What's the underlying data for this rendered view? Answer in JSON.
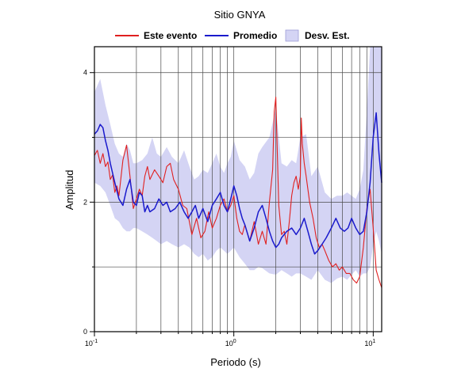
{
  "chart_data": {
    "type": "line",
    "title": "Sitio GNYA",
    "xlabel": "Periodo (s)",
    "ylabel": "Amplitud",
    "x_scale": "log",
    "xlim": [
      0.1,
      11.5
    ],
    "ylim": [
      0,
      4.4
    ],
    "grid": true,
    "legend_position": "top",
    "x_ticks": [
      {
        "value": 0.1,
        "base": "10",
        "exp": "-1"
      },
      {
        "value": 1,
        "base": "10",
        "exp": "0"
      },
      {
        "value": 10,
        "base": "10",
        "exp": "1"
      }
    ],
    "y_ticks": [
      "0",
      "2",
      "4"
    ],
    "legend": [
      {
        "label": "Este evento",
        "kind": "line",
        "color": "#e02020"
      },
      {
        "label": "Promedio",
        "kind": "line",
        "color": "#1a1acc"
      },
      {
        "label": "Desv. Est.",
        "kind": "band",
        "color": "#d4d4f4"
      }
    ],
    "series": [
      {
        "name": "Este evento",
        "color": "#e02020",
        "x": [
          0.1,
          0.105,
          0.11,
          0.115,
          0.12,
          0.125,
          0.13,
          0.135,
          0.14,
          0.145,
          0.15,
          0.16,
          0.17,
          0.18,
          0.19,
          0.2,
          0.21,
          0.22,
          0.23,
          0.24,
          0.25,
          0.27,
          0.29,
          0.31,
          0.33,
          0.35,
          0.37,
          0.4,
          0.43,
          0.46,
          0.5,
          0.54,
          0.58,
          0.62,
          0.66,
          0.7,
          0.75,
          0.8,
          0.85,
          0.9,
          0.95,
          1.0,
          1.05,
          1.1,
          1.15,
          1.2,
          1.3,
          1.4,
          1.5,
          1.6,
          1.7,
          1.8,
          1.9,
          1.95,
          2.0,
          2.05,
          2.1,
          2.2,
          2.3,
          2.4,
          2.5,
          2.6,
          2.7,
          2.8,
          2.9,
          3.0,
          3.05,
          3.1,
          3.2,
          3.3,
          3.4,
          3.5,
          3.7,
          3.9,
          4.1,
          4.3,
          4.5,
          4.8,
          5.1,
          5.4,
          5.7,
          6.0,
          6.4,
          6.8,
          7.2,
          7.6,
          8.0,
          8.5,
          9.0,
          9.5,
          10.0,
          10.5,
          11.0,
          11.5
        ],
        "y": [
          2.72,
          2.8,
          2.6,
          2.75,
          2.55,
          2.62,
          2.35,
          2.42,
          2.15,
          2.25,
          2.1,
          2.65,
          2.88,
          2.4,
          1.9,
          2.05,
          2.2,
          2.1,
          2.4,
          2.55,
          2.35,
          2.5,
          2.4,
          2.3,
          2.55,
          2.6,
          2.35,
          2.2,
          1.95,
          1.9,
          1.5,
          1.75,
          1.45,
          1.55,
          1.85,
          1.6,
          1.75,
          1.95,
          2.05,
          1.85,
          1.95,
          2.1,
          1.75,
          1.55,
          1.5,
          1.65,
          1.4,
          1.7,
          1.35,
          1.55,
          1.35,
          2.0,
          2.5,
          3.4,
          3.62,
          2.8,
          1.95,
          1.5,
          1.55,
          1.35,
          1.7,
          2.1,
          2.3,
          2.4,
          2.2,
          2.4,
          3.3,
          2.9,
          2.6,
          2.4,
          2.2,
          2.0,
          1.75,
          1.45,
          1.3,
          1.35,
          1.25,
          1.1,
          1.0,
          1.05,
          0.95,
          1.0,
          0.9,
          0.9,
          0.8,
          0.75,
          0.85,
          1.3,
          1.9,
          2.2,
          1.6,
          0.95,
          0.8,
          0.68
        ]
      },
      {
        "name": "Promedio",
        "color": "#1a1acc",
        "x": [
          0.1,
          0.105,
          0.11,
          0.115,
          0.12,
          0.125,
          0.13,
          0.14,
          0.15,
          0.16,
          0.17,
          0.18,
          0.19,
          0.2,
          0.21,
          0.22,
          0.23,
          0.24,
          0.25,
          0.27,
          0.29,
          0.31,
          0.33,
          0.35,
          0.38,
          0.41,
          0.44,
          0.47,
          0.5,
          0.53,
          0.56,
          0.6,
          0.65,
          0.7,
          0.75,
          0.8,
          0.85,
          0.9,
          0.95,
          1.0,
          1.05,
          1.1,
          1.15,
          1.2,
          1.3,
          1.4,
          1.5,
          1.6,
          1.7,
          1.8,
          1.9,
          2.0,
          2.1,
          2.2,
          2.4,
          2.6,
          2.8,
          3.0,
          3.2,
          3.4,
          3.6,
          3.8,
          4.0,
          4.3,
          4.6,
          5.0,
          5.4,
          5.8,
          6.2,
          6.6,
          7.0,
          7.5,
          8.0,
          8.5,
          9.0,
          9.5,
          10.0,
          10.5,
          11.0,
          11.5
        ],
        "y": [
          3.05,
          3.1,
          3.2,
          3.15,
          2.95,
          2.8,
          2.6,
          2.3,
          2.05,
          1.95,
          2.2,
          2.35,
          2.0,
          1.95,
          2.15,
          2.1,
          1.85,
          1.95,
          1.85,
          1.9,
          2.05,
          1.95,
          2.0,
          1.85,
          1.9,
          2.0,
          1.85,
          1.75,
          1.85,
          1.95,
          1.75,
          1.9,
          1.7,
          1.95,
          2.05,
          2.15,
          1.95,
          1.85,
          2.05,
          2.25,
          2.1,
          1.9,
          1.75,
          1.65,
          1.4,
          1.6,
          1.85,
          1.95,
          1.75,
          1.55,
          1.4,
          1.3,
          1.35,
          1.45,
          1.55,
          1.6,
          1.5,
          1.6,
          1.75,
          1.55,
          1.35,
          1.2,
          1.25,
          1.35,
          1.45,
          1.6,
          1.75,
          1.6,
          1.55,
          1.6,
          1.75,
          1.6,
          1.5,
          1.55,
          1.85,
          2.3,
          3.0,
          3.38,
          2.75,
          2.3
        ]
      }
    ],
    "band": {
      "name": "Desv. Est.",
      "color": "#d4d4f4",
      "x": [
        0.1,
        0.11,
        0.12,
        0.13,
        0.14,
        0.15,
        0.16,
        0.17,
        0.18,
        0.19,
        0.2,
        0.22,
        0.24,
        0.26,
        0.28,
        0.3,
        0.33,
        0.36,
        0.4,
        0.44,
        0.48,
        0.52,
        0.56,
        0.6,
        0.65,
        0.7,
        0.75,
        0.8,
        0.85,
        0.9,
        0.95,
        1.0,
        1.1,
        1.2,
        1.3,
        1.4,
        1.5,
        1.6,
        1.8,
        2.0,
        2.2,
        2.4,
        2.6,
        2.8,
        3.0,
        3.3,
        3.6,
        4.0,
        4.5,
        5.0,
        5.5,
        6.0,
        6.5,
        7.0,
        7.5,
        8.0,
        8.5,
        9.0,
        9.5,
        10.0,
        10.5,
        11.0,
        11.5
      ],
      "upper": [
        3.7,
        3.9,
        3.5,
        3.2,
        2.9,
        2.75,
        2.7,
        2.9,
        2.8,
        2.6,
        2.6,
        2.65,
        2.75,
        3.0,
        2.75,
        2.7,
        2.85,
        2.7,
        2.6,
        2.8,
        2.55,
        2.35,
        2.4,
        2.5,
        2.45,
        2.6,
        2.75,
        2.55,
        2.45,
        2.6,
        2.7,
        2.95,
        2.65,
        2.55,
        2.35,
        2.45,
        2.75,
        2.85,
        3.0,
        3.45,
        2.6,
        2.55,
        2.65,
        2.6,
        3.0,
        3.05,
        2.4,
        2.55,
        2.15,
        2.05,
        2.1,
        2.1,
        2.15,
        2.1,
        2.05,
        2.2,
        2.5,
        3.4,
        4.4,
        4.4,
        4.4,
        4.4,
        4.4
      ],
      "lower": [
        2.3,
        2.25,
        2.15,
        1.95,
        1.75,
        1.7,
        1.6,
        1.55,
        1.55,
        1.6,
        1.6,
        1.55,
        1.5,
        1.45,
        1.4,
        1.35,
        1.4,
        1.35,
        1.3,
        1.35,
        1.3,
        1.2,
        1.15,
        1.2,
        1.1,
        1.15,
        1.25,
        1.3,
        1.25,
        1.2,
        1.25,
        1.3,
        1.15,
        1.05,
        0.95,
        0.95,
        1.0,
        0.98,
        0.9,
        0.88,
        0.95,
        0.9,
        0.85,
        0.9,
        0.9,
        0.85,
        0.8,
        0.95,
        0.8,
        0.75,
        0.82,
        0.85,
        0.8,
        0.88,
        0.95,
        0.85,
        0.9,
        0.9,
        1.0,
        1.35,
        1.55,
        1.4,
        1.2
      ]
    }
  }
}
